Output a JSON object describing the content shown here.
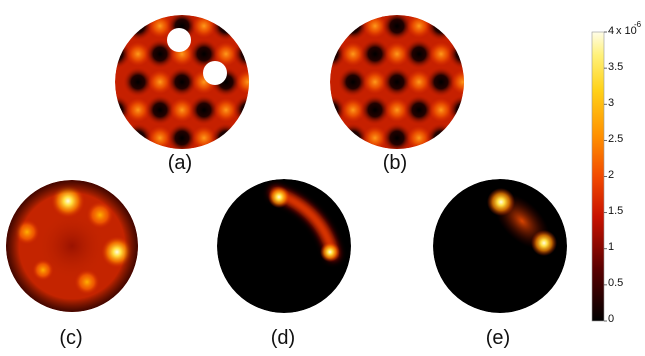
{
  "panels": [
    {
      "label": "(a)"
    },
    {
      "label": "(b)"
    },
    {
      "label": "(c)"
    },
    {
      "label": "(d)"
    },
    {
      "label": "(e)"
    }
  ],
  "colorbar": {
    "colormap": "hot",
    "scale_factor_label": "x 10",
    "scale_factor_exponent": "-6",
    "ticks": [
      "0",
      "0.5",
      "1",
      "1.5",
      "2",
      "2.5",
      "3",
      "3.5",
      "4"
    ]
  }
}
